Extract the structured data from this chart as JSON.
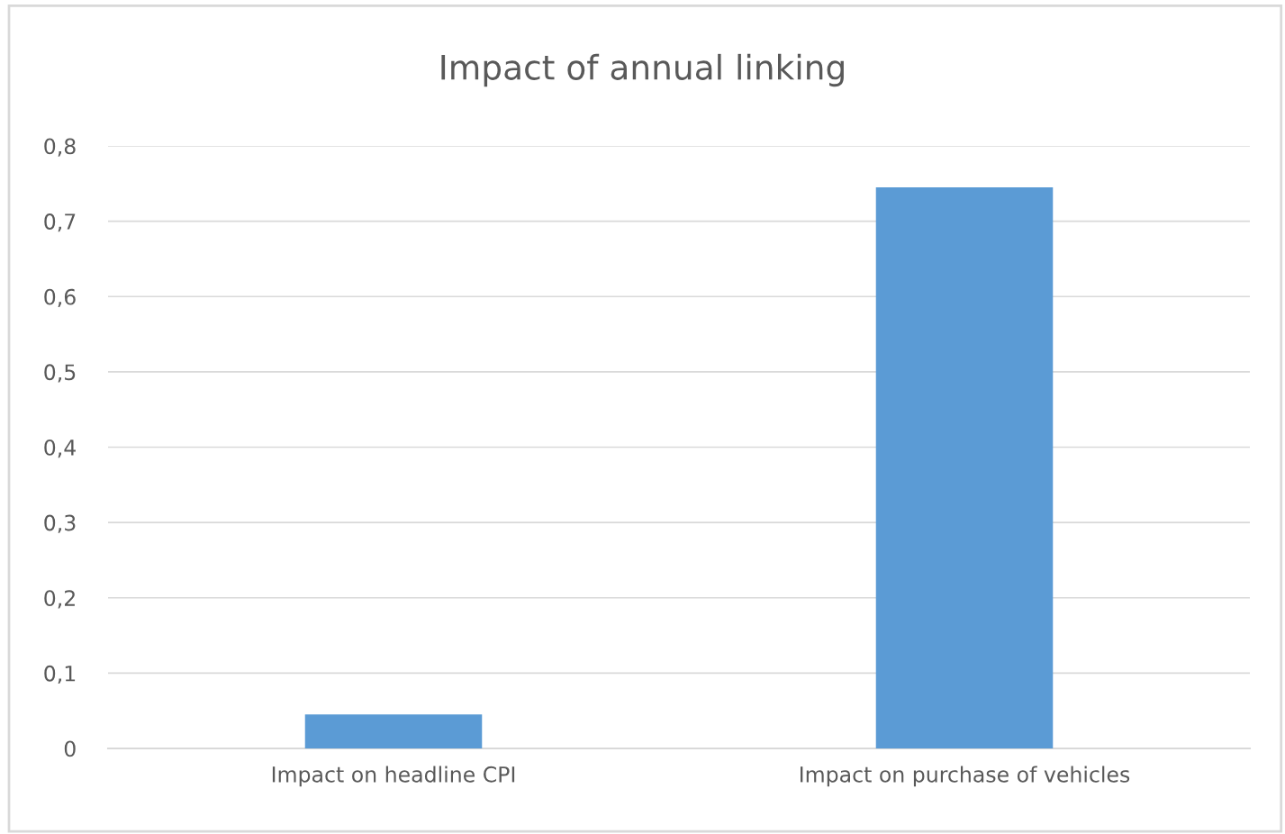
{
  "chart_data": {
    "type": "bar",
    "title": "Impact of annual linking",
    "categories": [
      "Impact on headline CPI",
      "Impact on purchase of vehicles"
    ],
    "values": [
      0.045,
      0.745
    ],
    "color": "#5b9bd5",
    "ylim": [
      0,
      0.8
    ],
    "yticks": [
      0,
      {
        "value": 0.1,
        "label": "0,1"
      },
      {
        "value": 0.2,
        "label": "0,2"
      },
      {
        "value": 0.3,
        "label": "0,3"
      },
      {
        "value": 0.4,
        "label": "0,4"
      },
      {
        "value": 0.5,
        "label": "0,5"
      },
      {
        "value": 0.6,
        "label": "0,6"
      },
      {
        "value": 0.7,
        "label": "0,7"
      },
      {
        "value": 0.8,
        "label": "0,8"
      }
    ],
    "grid": "y",
    "legend": false
  }
}
